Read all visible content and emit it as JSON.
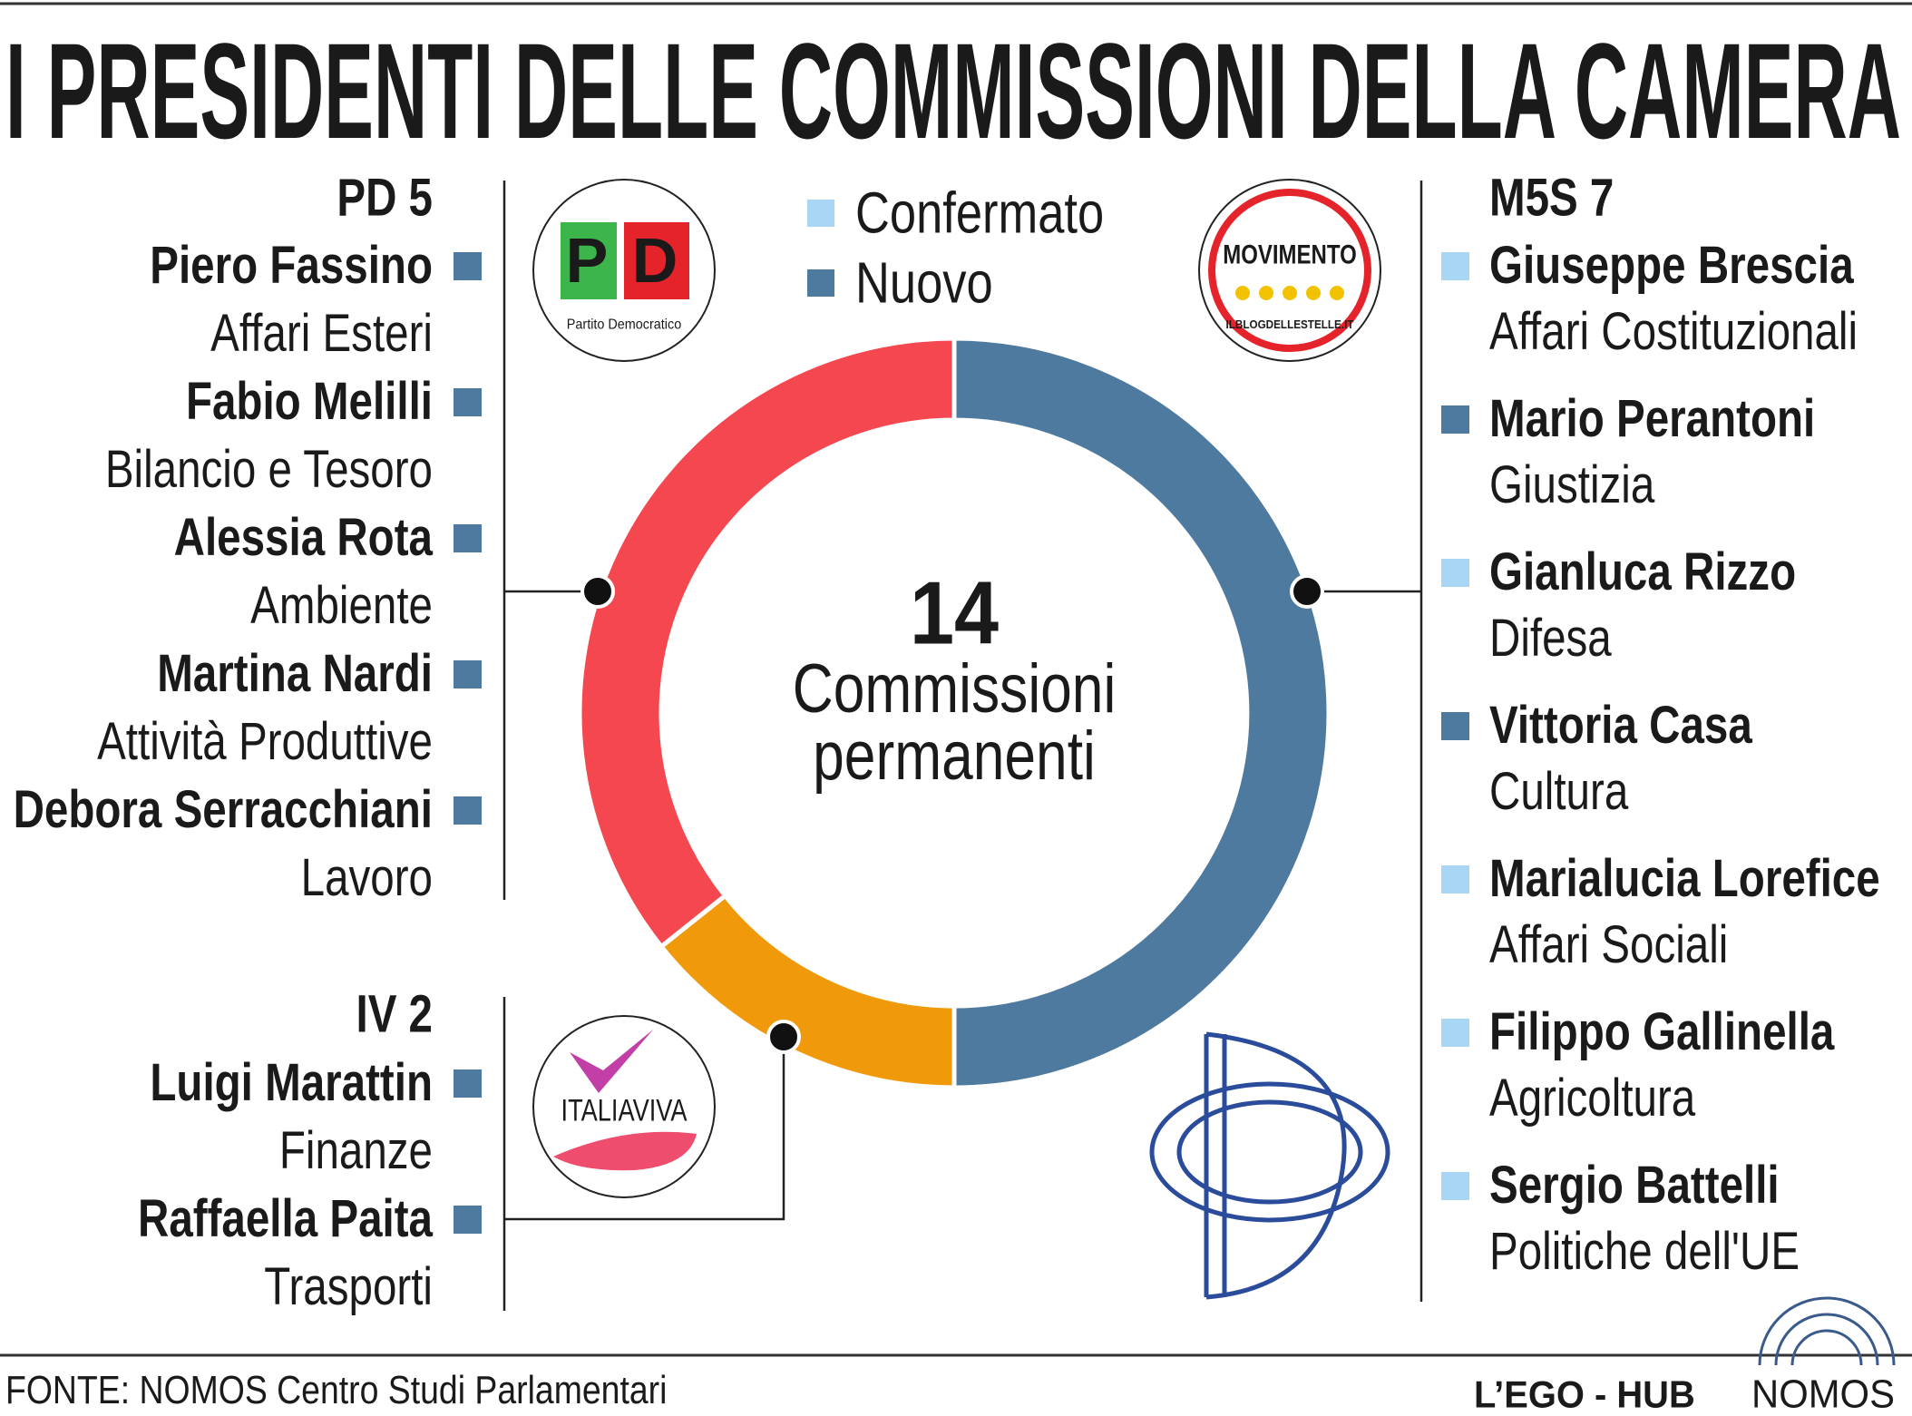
{
  "title": "I PRESIDENTI DELLE COMMISSIONI DELLA CAMERA",
  "chart_data": {
    "type": "donut",
    "categories": [
      "M5S",
      "IV",
      "PD"
    ],
    "values": [
      7,
      2,
      5
    ],
    "colors": [
      "#4e7aa0",
      "#f09a0b",
      "#f5474f"
    ],
    "total": 14,
    "center_lines": [
      "Commissioni",
      "permanenti"
    ],
    "status_legend": [
      {
        "name": "Confermato",
        "color": "#a9d6f5"
      },
      {
        "name": "Nuovo",
        "color": "#4e7aa0"
      }
    ],
    "members": [
      [
        {
          "name": "Giuseppe Brescia",
          "commission": "Affari Costituzionali",
          "status": "Confermato"
        },
        {
          "name": "Mario Perantoni",
          "commission": "Giustizia",
          "status": "Nuovo"
        },
        {
          "name": "Gianluca Rizzo",
          "commission": "Difesa",
          "status": "Confermato"
        },
        {
          "name": "Vittoria Casa",
          "commission": "Cultura",
          "status": "Nuovo"
        },
        {
          "name": "Marialucia Lorefice",
          "commission": "Affari Sociali",
          "status": "Confermato"
        },
        {
          "name": "Filippo Gallinella",
          "commission": "Agricoltura",
          "status": "Confermato"
        },
        {
          "name": "Sergio Battelli",
          "commission": "Politiche dell'UE",
          "status": "Confermato"
        }
      ],
      [
        {
          "name": "Luigi Marattin",
          "commission": "Finanze",
          "status": "Nuovo"
        },
        {
          "name": "Raffaella Paita",
          "commission": "Trasporti",
          "status": "Nuovo"
        }
      ],
      [
        {
          "name": "Piero Fassino",
          "commission": "Affari Esteri",
          "status": "Nuovo"
        },
        {
          "name": "Fabio Melilli",
          "commission": "Bilancio e Tesoro",
          "status": "Nuovo"
        },
        {
          "name": "Alessia Rota",
          "commission": "Ambiente",
          "status": "Nuovo"
        },
        {
          "name": "Martina Nardi",
          "commission": "Attività Produttive",
          "status": "Nuovo"
        },
        {
          "name": "Debora Serracchiani",
          "commission": "Lavoro",
          "status": "Nuovo"
        }
      ]
    ]
  },
  "logos": {
    "pd": "Partito Democratico",
    "m5s": "MOVIMENTO",
    "m5s_url": "ILBLOGDELLESTELLE.IT",
    "iv": "ITALIAVIVA"
  },
  "footer": {
    "source": "FONTE: NOMOS Centro Studi Parlamentari",
    "brand": "L’EGO - HUB",
    "logo": "NOMOS"
  }
}
